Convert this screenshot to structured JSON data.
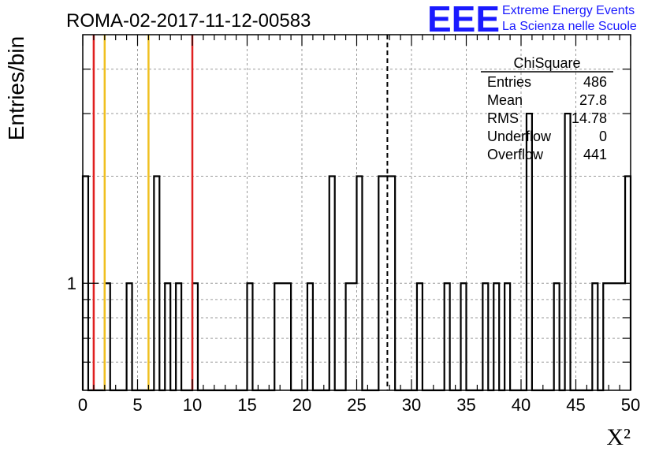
{
  "chart_data": {
    "type": "bar",
    "title": "ROMA-02-2017-11-12-00583",
    "xlabel": "X²",
    "ylabel": "Entries/bin",
    "xlim": [
      0,
      50
    ],
    "ylim": [
      0.5,
      5
    ],
    "yscale": "log",
    "grid": true,
    "bin_width": 0.5,
    "x_ticks": [
      "0",
      "5",
      "10",
      "15",
      "20",
      "25",
      "30",
      "35",
      "40",
      "45",
      "50"
    ],
    "y_ticks": [
      "1"
    ],
    "bins": [
      {
        "x0": 0.0,
        "value": 2
      },
      {
        "x0": 2.0,
        "value": 1
      },
      {
        "x0": 4.0,
        "value": 1
      },
      {
        "x0": 6.5,
        "value": 2
      },
      {
        "x0": 7.5,
        "value": 1
      },
      {
        "x0": 8.5,
        "value": 1
      },
      {
        "x0": 10.0,
        "value": 1
      },
      {
        "x0": 15.0,
        "value": 1
      },
      {
        "x0": 17.5,
        "value": 1
      },
      {
        "x0": 18.0,
        "value": 1
      },
      {
        "x0": 18.5,
        "value": 1
      },
      {
        "x0": 20.5,
        "value": 1
      },
      {
        "x0": 22.5,
        "value": 2
      },
      {
        "x0": 24.0,
        "value": 1
      },
      {
        "x0": 24.5,
        "value": 1
      },
      {
        "x0": 25.0,
        "value": 2
      },
      {
        "x0": 27.0,
        "value": 2
      },
      {
        "x0": 27.5,
        "value": 2
      },
      {
        "x0": 28.0,
        "value": 2
      },
      {
        "x0": 30.5,
        "value": 1
      },
      {
        "x0": 33.0,
        "value": 1
      },
      {
        "x0": 34.5,
        "value": 1
      },
      {
        "x0": 36.5,
        "value": 1
      },
      {
        "x0": 37.5,
        "value": 1
      },
      {
        "x0": 38.5,
        "value": 1
      },
      {
        "x0": 40.5,
        "value": 3
      },
      {
        "x0": 43.0,
        "value": 1
      },
      {
        "x0": 44.0,
        "value": 3
      },
      {
        "x0": 46.5,
        "value": 1
      },
      {
        "x0": 47.5,
        "value": 1
      },
      {
        "x0": 48.0,
        "value": 1
      },
      {
        "x0": 48.5,
        "value": 1
      },
      {
        "x0": 49.0,
        "value": 1
      },
      {
        "x0": 49.5,
        "value": 2
      }
    ],
    "reference_lines": [
      {
        "x": 1,
        "color": "#e02020",
        "style": "solid"
      },
      {
        "x": 2,
        "color": "#f0c020",
        "style": "solid"
      },
      {
        "x": 6,
        "color": "#f0c020",
        "style": "solid"
      },
      {
        "x": 10,
        "color": "#e02020",
        "style": "solid"
      },
      {
        "x": 27.8,
        "color": "#000000",
        "style": "dashed"
      }
    ],
    "stats_box": {
      "title": "ChiSquare",
      "rows": [
        {
          "label": "Entries",
          "value": "486"
        },
        {
          "label": "Mean",
          "value": "27.8"
        },
        {
          "label": "RMS",
          "value": "14.78"
        },
        {
          "label": "Underflow",
          "value": "0"
        },
        {
          "label": "Overflow",
          "value": "441"
        }
      ]
    }
  },
  "logo": {
    "mark": "EEE",
    "line1": "Extreme Energy Events",
    "line2": "La Scienza nelle Scuole",
    "color": "#1a1aff"
  }
}
